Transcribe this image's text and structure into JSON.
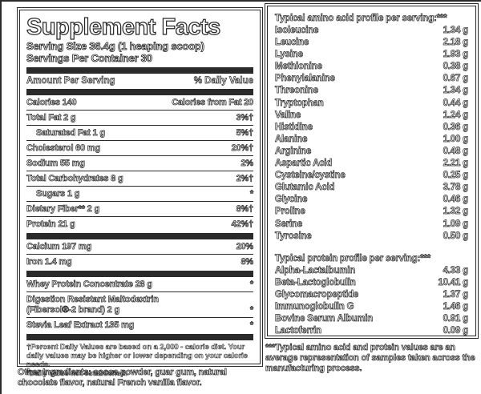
{
  "facts": {
    "title": "Supplement Facts",
    "serving_size": "Serving Size 36.4g (1 heaping scoop)",
    "servings_per_container": "Servings Per Container 30",
    "amount_header": "Amount Per Serving",
    "dv_header": "% Daily Value",
    "calories": {
      "left": "Calories 140",
      "right": "Calories from Fat 20"
    },
    "nutrients": [
      {
        "name": "Total Fat 2 g",
        "dv": "3%†"
      },
      {
        "name": "Saturated Fat 1 g",
        "dv": "5%†"
      },
      {
        "name": "Cholesterol 60 mg",
        "dv": "20%†"
      },
      {
        "name": "Sodium 55 mg",
        "dv": "2%"
      },
      {
        "name": "Total Carbohydrates 8 g",
        "dv": "2%†"
      },
      {
        "name": "Sugars 1 g",
        "dv": "*"
      },
      {
        "name": "Dietary Fiber** 2 g",
        "dv": "8%†"
      },
      {
        "name": "Protein 21 g",
        "dv": "42%†"
      }
    ],
    "minerals": [
      {
        "name": "Calcium 197 mg",
        "dv": "20%"
      },
      {
        "name": "Iron 1.4 mg",
        "dv": "8%"
      }
    ],
    "ingredients": [
      {
        "name": "Whey Protein Concentrate 28 g",
        "dv": "*"
      },
      {
        "name": "Digestion Resistant Maltodextrin (Fibersol®-2 brand) 2 g",
        "dv": "*"
      },
      {
        "name": "Stevia Leaf Extract 135 mg",
        "dv": "*"
      }
    ],
    "footnote_dagger": "†Percent Daily Values are based on a 2,000 - calorie diet. Your daily values may be higher or lower depending on your calorie needs.",
    "footnote_asterisk": "*Daily Value not established.",
    "other_ingredients": "Other Ingredients: cocoa powder, guar gum, natural chocolate flavor, natural French vanilla flavor."
  },
  "amino": {
    "header": "Typical amino acid profile per serving:***",
    "rows": [
      {
        "name": "Isoleucine",
        "value": "1.34 g"
      },
      {
        "name": "Leucine",
        "value": "2.18 g"
      },
      {
        "name": "Lysine",
        "value": "1.93 g"
      },
      {
        "name": "Methionine",
        "value": "0.38 g"
      },
      {
        "name": "Phenylalanine",
        "value": "0.67 g"
      },
      {
        "name": "Threonine",
        "value": "1.34 g"
      },
      {
        "name": "Tryptophan",
        "value": "0.44 g"
      },
      {
        "name": "Valine",
        "value": "1.24 g"
      },
      {
        "name": "Histidine",
        "value": "0.36 g"
      },
      {
        "name": "Alanine",
        "value": "1.00 g"
      },
      {
        "name": "Arginine",
        "value": "0.48 g"
      },
      {
        "name": "Aspartic Acid",
        "value": "2.21 g"
      },
      {
        "name": "Cysteine/cystine",
        "value": "0.25 g"
      },
      {
        "name": "Glutamic Acid",
        "value": "3.78 g"
      },
      {
        "name": "Glycine",
        "value": "0.46 g"
      },
      {
        "name": "Proline",
        "value": "1.32 g"
      },
      {
        "name": "Serine",
        "value": "1.09 g"
      },
      {
        "name": "Tyrosine",
        "value": "0.50 g"
      }
    ],
    "protein_header": "Typical protein profile per serving:***",
    "protein_rows": [
      {
        "name": "Alpha-Lactalbumin",
        "value": "4.33 g"
      },
      {
        "name": "Beta-Lactoglobulin",
        "value": "10.41 g"
      },
      {
        "name": "Glycomacropeptide",
        "value": "1.37 g"
      },
      {
        "name": "Immunoglobulin G",
        "value": "1.46 g"
      },
      {
        "name": "Bovine Serum Albumin",
        "value": "0.91 g"
      },
      {
        "name": "Lactoferrin",
        "value": "0.09 g"
      }
    ],
    "footnote": "***Typical amino acid and protein values are an average representation of samples taken across the manufacturing process."
  },
  "colors": {
    "ink": "#2a2a2a",
    "background": "#ffffff"
  }
}
